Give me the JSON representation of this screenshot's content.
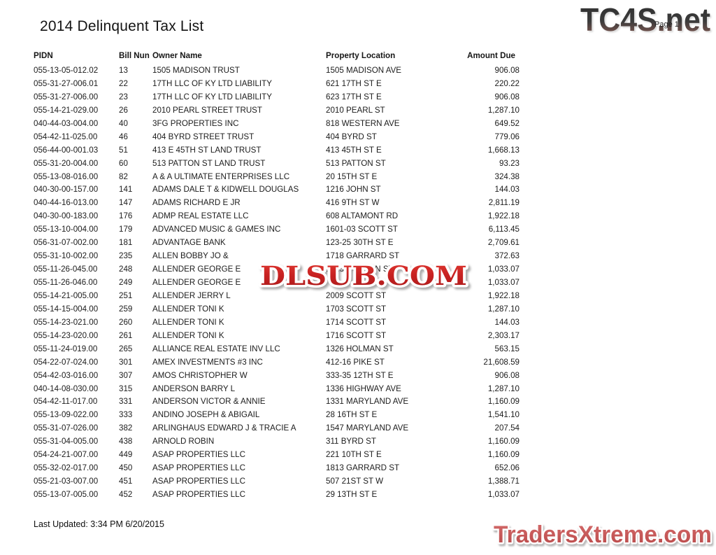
{
  "page": {
    "title": "2014 Delinquent Tax List",
    "page_label": "Page 1",
    "last_updated": "Last Updated: 3:34 PM  6/20/2015"
  },
  "watermarks": {
    "top_logo": "TC4S.net",
    "center_logo": "DLSUB.COM",
    "bottom_logo": "TradersXtreme.com",
    "colors": {
      "top_logo_dark": "#353535",
      "top_logo_brick": "#8d5c54",
      "center_logo_red": "#c62020",
      "bottom_logo_red": "#c75454",
      "outline_white": "#ffffff"
    }
  },
  "table": {
    "headers": [
      "PIDN",
      "Bill Nun",
      "Owner Name",
      "Property Location",
      "Amount Due"
    ],
    "rows": [
      [
        "055-13-05-012.02",
        "13",
        "1505 MADISON TRUST",
        "1505 MADISON AVE",
        "906.08"
      ],
      [
        "055-31-27-006.01",
        "22",
        "17TH LLC OF KY LTD LIABILITY",
        "621 17TH ST E",
        "220.22"
      ],
      [
        "055-31-27-006.00",
        "23",
        "17TH LLC OF KY LTD LIABILITY",
        "623 17TH ST E",
        "906.08"
      ],
      [
        "055-14-21-029.00",
        "26",
        "2010 PEARL STREET TRUST",
        "2010 PEARL ST",
        "1,287.10"
      ],
      [
        "040-44-03-004.00",
        "40",
        "3FG PROPERTIES INC",
        "818 WESTERN AVE",
        "649.52"
      ],
      [
        "054-42-11-025.00",
        "46",
        "404 BYRD STREET TRUST",
        "404 BYRD ST",
        "779.06"
      ],
      [
        "056-44-00-001.03",
        "51",
        "413 E 45TH ST LAND TRUST",
        "413 45TH ST E",
        "1,668.13"
      ],
      [
        "055-31-20-004.00",
        "60",
        "513 PATTON ST LAND TRUST",
        "513 PATTON ST",
        "93.23"
      ],
      [
        "055-13-08-016.00",
        "82",
        "A & A ULTIMATE ENTERPRISES LLC",
        "20 15TH ST E",
        "324.38"
      ],
      [
        "040-30-00-157.00",
        "141",
        "ADAMS DALE T & KIDWELL DOUGLAS",
        "1216 JOHN ST",
        "144.03"
      ],
      [
        "040-44-16-013.00",
        "147",
        "ADAMS RICHARD E JR",
        "416 9TH ST W",
        "2,811.19"
      ],
      [
        "040-30-00-183.00",
        "176",
        "ADMP REAL ESTATE LLC",
        "608 ALTAMONT RD",
        "1,922.18"
      ],
      [
        "055-13-10-004.00",
        "179",
        "ADVANCED MUSIC & GAMES INC",
        "1601-03 SCOTT ST",
        "6,113.45"
      ],
      [
        "056-31-07-002.00",
        "181",
        "ADVANTAGE BANK",
        "123-25 30TH ST E",
        "2,709.61"
      ],
      [
        "055-31-10-002.00",
        "235",
        "ALLEN BOBBY JO &",
        "1718 GARRARD ST",
        "372.63"
      ],
      [
        "055-11-26-045.00",
        "248",
        "ALLENDER GEORGE E",
        "1513 HOLMAN ST",
        "1,033.07"
      ],
      [
        "055-11-26-046.00",
        "249",
        "ALLENDER GEORGE E",
        "",
        "1,033.07"
      ],
      [
        "055-14-21-005.00",
        "251",
        "ALLENDER JERRY L",
        "2009 SCOTT ST",
        "1,922.18"
      ],
      [
        "055-14-15-004.00",
        "259",
        "ALLENDER TONI K",
        "1703 SCOTT ST",
        "1,287.10"
      ],
      [
        "055-14-23-021.00",
        "260",
        "ALLENDER TONI K",
        "1714 SCOTT ST",
        "144.03"
      ],
      [
        "055-14-23-020.00",
        "261",
        "ALLENDER TONI K",
        "1716 SCOTT ST",
        "2,303.17"
      ],
      [
        "055-11-24-019.00",
        "265",
        "ALLIANCE REAL ESTATE INV LLC",
        "1326 HOLMAN ST",
        "563.15"
      ],
      [
        "054-22-07-024.00",
        "301",
        "AMEX INVESTMENTS #3 INC",
        "412-16 PIKE ST",
        "21,608.59"
      ],
      [
        "054-42-03-016.00",
        "307",
        "AMOS CHRISTOPHER W",
        "333-35 12TH ST E",
        "906.08"
      ],
      [
        "040-14-08-030.00",
        "315",
        "ANDERSON BARRY L",
        "1336 HIGHWAY AVE",
        "1,287.10"
      ],
      [
        "054-42-11-017.00",
        "331",
        "ANDERSON VICTOR & ANNIE",
        "1331 MARYLAND AVE",
        "1,160.09"
      ],
      [
        "055-13-09-022.00",
        "333",
        "ANDINO JOSEPH & ABIGAIL",
        "28 16TH ST E",
        "1,541.10"
      ],
      [
        "055-31-07-026.00",
        "382",
        "ARLINGHAUS EDWARD J & TRACIE A",
        "1547 MARYLAND AVE",
        "207.54"
      ],
      [
        "055-31-04-005.00",
        "438",
        "ARNOLD ROBIN",
        "311 BYRD ST",
        "1,160.09"
      ],
      [
        "054-24-21-007.00",
        "449",
        "ASAP PROPERTIES LLC",
        "221 10TH ST E",
        "1,160.09"
      ],
      [
        "055-32-02-017.00",
        "450",
        "ASAP PROPERTIES LLC",
        "1813 GARRARD ST",
        "652.06"
      ],
      [
        "055-21-03-007.00",
        "451",
        "ASAP PROPERTIES LLC",
        "507 21ST ST W",
        "1,388.71"
      ],
      [
        "055-13-07-005.00",
        "452",
        "ASAP PROPERTIES LLC",
        "29 13TH ST E",
        "1,033.07"
      ]
    ]
  }
}
